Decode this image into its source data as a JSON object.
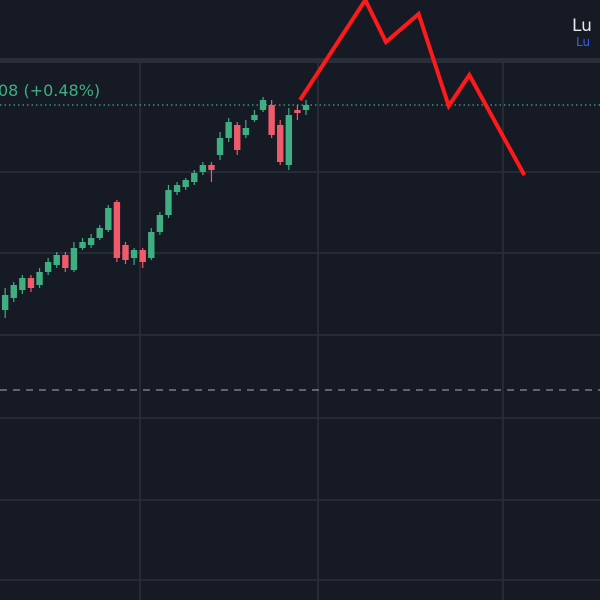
{
  "chart_data": {
    "type": "candlestick",
    "header_text": "08 (+0.48%)",
    "brand_text": "Lu",
    "brand_subtext": "Lu",
    "up_color": "#3fae80",
    "down_color": "#ef5b6b",
    "xlim": [
      0.4,
      70.2
    ],
    "ylim": [
      0,
      600
    ],
    "x": [
      1,
      2,
      3,
      4,
      5,
      6,
      7,
      8,
      9,
      10,
      11,
      12,
      13,
      14,
      15,
      16,
      17,
      18,
      19,
      20,
      21,
      22,
      23,
      24,
      25,
      26,
      27,
      28,
      29,
      30,
      31,
      32,
      33,
      34,
      35,
      36
    ],
    "open": [
      290,
      302,
      310,
      322,
      315,
      328,
      335,
      345,
      330,
      352,
      355,
      362,
      370,
      398,
      355,
      342,
      350,
      342,
      368,
      385,
      408,
      413,
      418,
      428,
      435,
      445,
      462,
      475,
      465,
      480,
      490,
      495,
      475,
      435,
      490,
      490
    ],
    "high": [
      312,
      318,
      325,
      325,
      332,
      342,
      348,
      348,
      358,
      362,
      366,
      375,
      395,
      400,
      358,
      352,
      352,
      372,
      388,
      415,
      418,
      422,
      430,
      438,
      438,
      468,
      482,
      478,
      480,
      490,
      503,
      500,
      480,
      492,
      495,
      500
    ],
    "low": [
      282,
      298,
      306,
      308,
      312,
      325,
      332,
      328,
      328,
      350,
      352,
      360,
      368,
      338,
      336,
      335,
      332,
      340,
      365,
      382,
      405,
      410,
      415,
      425,
      418,
      440,
      458,
      445,
      462,
      478,
      488,
      462,
      435,
      430,
      480,
      485
    ],
    "close": [
      305,
      315,
      322,
      312,
      328,
      338,
      345,
      332,
      352,
      358,
      362,
      372,
      392,
      342,
      340,
      350,
      338,
      368,
      385,
      410,
      415,
      420,
      427,
      435,
      430,
      462,
      478,
      450,
      472,
      485,
      500,
      465,
      438,
      485,
      487,
      495
    ],
    "last_price": 495,
    "dashed_level": 210,
    "forecast": {
      "color": "#ff1a1a",
      "x": [
        35.3,
        42.9,
        45.3,
        49.1,
        52.6,
        55.0,
        61.4
      ],
      "values": [
        500,
        600,
        558,
        586,
        494,
        525,
        425
      ]
    }
  }
}
